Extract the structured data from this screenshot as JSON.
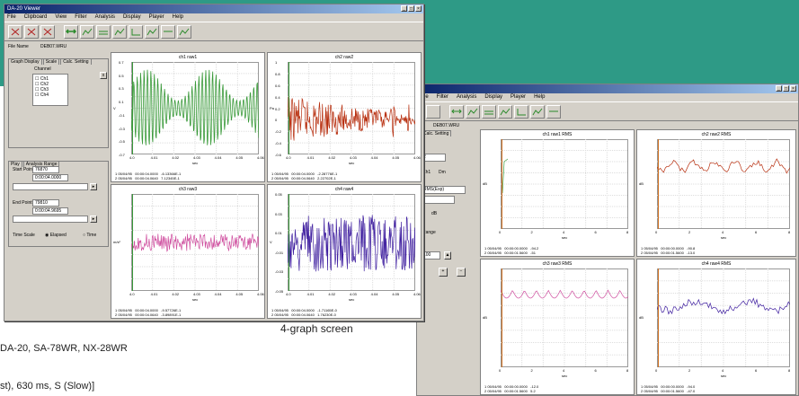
{
  "background_color": "#2e9a86",
  "caption": "4-graph screen",
  "text_line1": "DA-20, SA-78WR, NX-28WR",
  "text_line2": "st), 630 ms, S (Slow)]",
  "win1": {
    "title": "DA-20 Viewer",
    "menu": [
      "File",
      "Clipboard",
      "View",
      "Filter",
      "Analysis",
      "Display",
      "Player",
      "Help"
    ],
    "file_name_label": "File Name",
    "file_name_value": "DEB07.WRU",
    "tabs": [
      "Graph Display",
      "Scale",
      "Calc. Setting"
    ],
    "channel_label": "Channel",
    "channels": [
      "Ch1",
      "Ch2",
      "Ch3",
      "Ch4"
    ],
    "range_tabs": [
      "Play",
      "Analysis Range"
    ],
    "start_label": "Start Point",
    "start_value": "76870",
    "start_time": "0:00:04.0000",
    "end_label": "End Point",
    "end_value": "79810",
    "end_time": "0:00:04.9695",
    "timescale_label": "Time Scale",
    "timescale_opt1": "Elapsed",
    "timescale_opt2": "Time",
    "graphs": [
      {
        "title": "ch1 raw1",
        "xlabel": "sec",
        "ylabel": "V",
        "color": "#3a9a3a",
        "xticks": [
          "4.0",
          "4.01",
          "4.02",
          "4.03",
          "4.04",
          "4.05",
          "4.06"
        ],
        "yticks": [
          "0.7",
          "0.5",
          "0.3",
          "0.1",
          "-0.1",
          "-0.3",
          "-0.5",
          "-0.7"
        ],
        "foot": "1 05/04/95   00:00:04.0000   -6.13366E-1\n2 05/04/95   00:00:04.0640   7.12345E-1"
      },
      {
        "title": "ch2 raw2",
        "xlabel": "sec",
        "ylabel": "Pa",
        "color": "#b83010",
        "xticks": [
          "4.0",
          "4.01",
          "4.02",
          "4.03",
          "4.04",
          "4.05",
          "4.06"
        ],
        "yticks": [
          "1",
          "0.8",
          "0.6",
          "0.4",
          "0.2",
          "0",
          "-0.2",
          "-0.4",
          "-0.6"
        ],
        "foot": "1 05/04/95   00:00:04.0000   -2.28776E-1\n2 05/04/95   00:00:04.0640   2.22702E-1"
      },
      {
        "title": "ch3 raw3",
        "xlabel": "sec",
        "ylabel": "m/s²",
        "color": "#d050a0",
        "xticks": [
          "4.0",
          "4.01",
          "4.02",
          "4.03",
          "4.04",
          "4.05",
          "4.06"
        ],
        "yticks": [],
        "foot": "1 05/04/95   00:00:04.0000   -9.57726E-1\n2 05/04/95   00:00:04.0640   -3.89891E-1"
      },
      {
        "title": "ch4 raw4",
        "xlabel": "sec",
        "ylabel": "V",
        "color": "#4020a0",
        "xticks": [
          "4.0",
          "4.01",
          "4.02",
          "4.03",
          "4.04",
          "4.05",
          "4.06"
        ],
        "yticks": [
          "0.05",
          "0.03",
          "0.01",
          "-0.01",
          "-0.03",
          "-0.05"
        ],
        "foot": "1 05/04/95   00:00:04.0000   -1.71165E-0\n2 05/04/95   00:00:04.0640   1.76230E-0"
      }
    ]
  },
  "win2": {
    "menu": [
      "File",
      "Filter",
      "Analysis",
      "Display",
      "Player",
      "Help"
    ],
    "file_name_value": "DEB07.WRU",
    "tabs": [
      "Calc. Setting"
    ],
    "ch_label": "Ch1",
    "dm_label": "Dm",
    "select_value": "RMS(Exp)",
    "dB_label": "dB",
    "range_label": "Range",
    "range_value": "100",
    "graphs": [
      {
        "title": "ch1 raw1 RMS",
        "xlabel": "sec",
        "ylabel": "dB",
        "color": "#3a9a3a",
        "xticks": [
          "0",
          "2",
          "4",
          "6",
          "8"
        ],
        "foot": "1 05/04/95   00:00:00.0000   -94.2\n2 05/04/95   00:00:01.5600   -51"
      },
      {
        "title": "ch2 raw2 RMS",
        "xlabel": "sec",
        "ylabel": "dB",
        "color": "#b83010",
        "xticks": [
          "0",
          "2",
          "4",
          "6",
          "8"
        ],
        "foot": "1 05/04/95   00:00:00.0000   -90.8\n2 05/04/95   00:00:01.5600   -13.0"
      },
      {
        "title": "ch3 raw3 RMS",
        "xlabel": "sec",
        "ylabel": "dB",
        "color": "#d050a0",
        "xticks": [
          "0",
          "2",
          "4",
          "6",
          "8"
        ],
        "foot": "1 05/04/95   00:00:00.0000   -12.0\n2 05/04/95   00:00:01.5600   5.2"
      },
      {
        "title": "ch4 raw4 RMS",
        "xlabel": "sec",
        "ylabel": "dB",
        "color": "#4020a0",
        "xticks": [
          "0",
          "2",
          "4",
          "6",
          "8"
        ],
        "foot": "1 05/04/95   00:00:00.0000   -94.0\n2 05/04/95   00:00:01.5600   -47.0"
      }
    ]
  }
}
